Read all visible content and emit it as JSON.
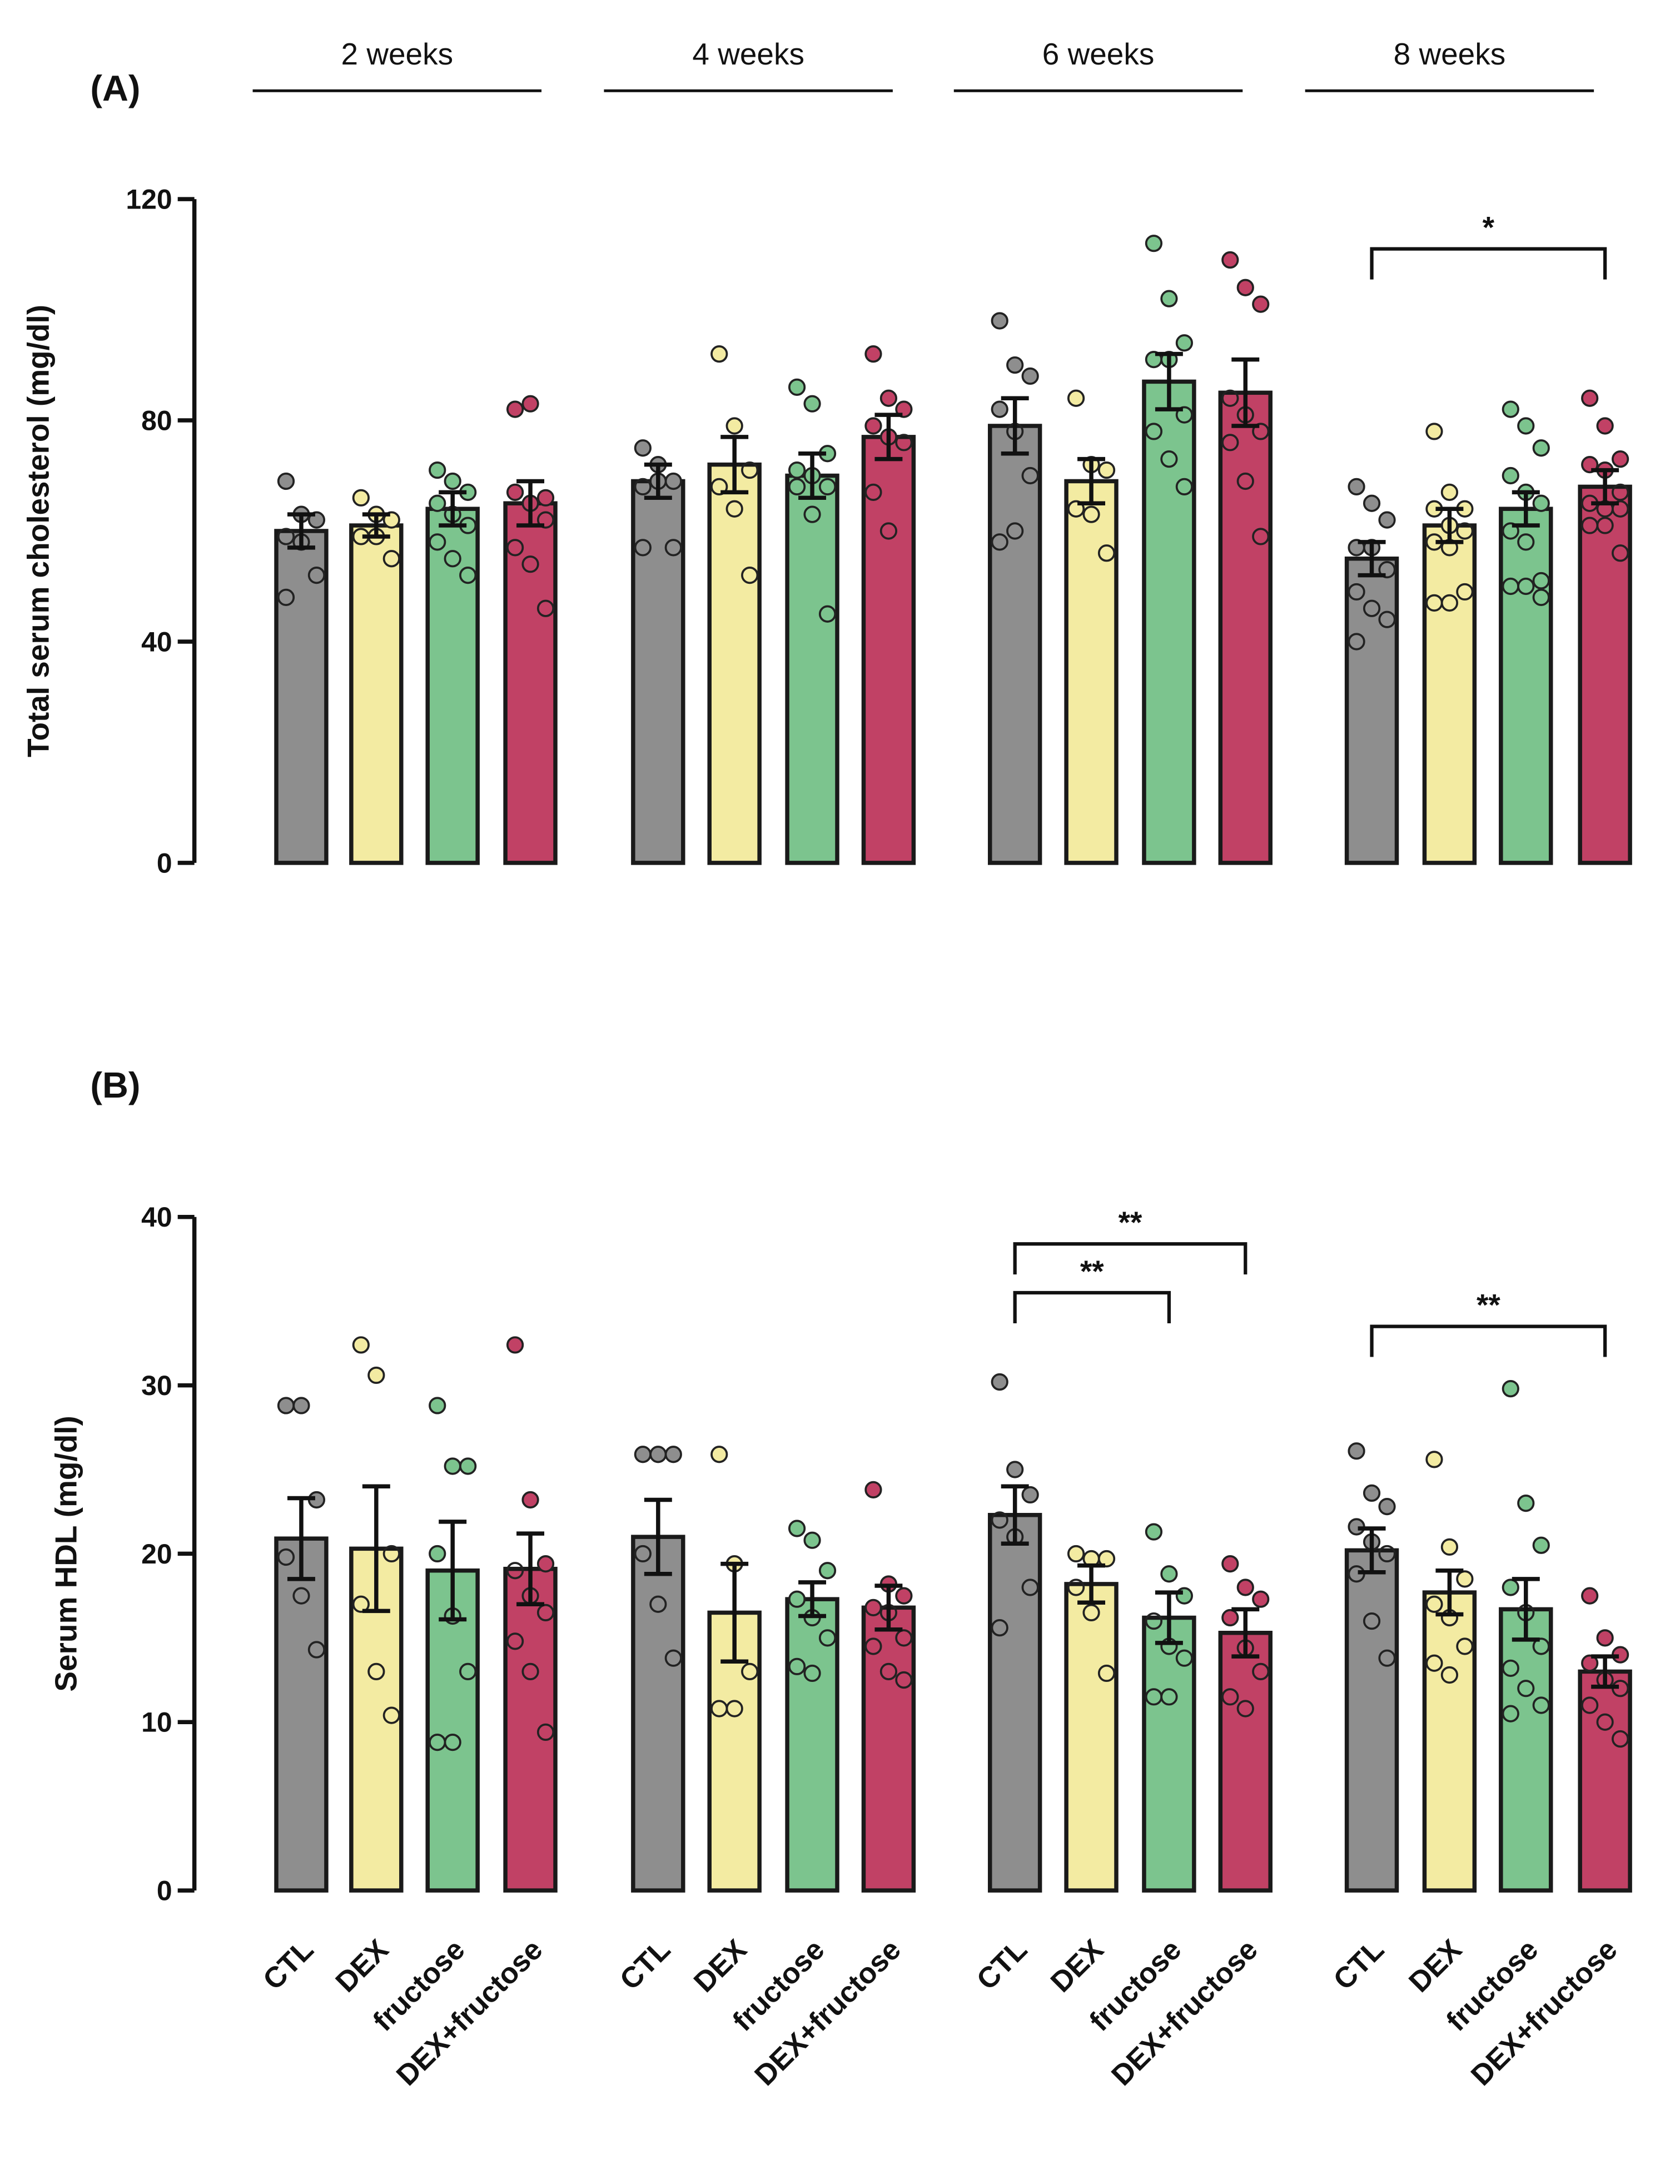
{
  "chart_data": {
    "type": "bar",
    "groups": [
      "2 weeks",
      "4 weeks",
      "6 weeks",
      "8 weeks"
    ],
    "categories": [
      "CTL",
      "DEX",
      "fructose",
      "DEX+fructose"
    ],
    "colors": {
      "CTL": "#8e8e8e",
      "DEX": "#f3eba2",
      "fructose": "#7cc48e",
      "DEX+fructose": "#c14165"
    },
    "panels": [
      {
        "label": "(A)",
        "ylabel": "Total serum cholesterol (mg/dl)",
        "ylim": [
          0,
          120
        ],
        "yticks": [
          "0",
          "40",
          "80",
          "120"
        ],
        "means": [
          [
            60,
            61,
            64,
            65
          ],
          [
            69,
            72,
            70,
            77
          ],
          [
            79,
            69,
            87,
            85
          ],
          [
            55,
            61,
            64,
            68
          ]
        ],
        "sem": [
          [
            3,
            2,
            3,
            4
          ],
          [
            3,
            5,
            4,
            4
          ],
          [
            5,
            4,
            5,
            6
          ],
          [
            3,
            3,
            3,
            3
          ]
        ],
        "points": [
          [
            [
              69,
              63,
              62,
              59,
              58,
              52,
              48
            ],
            [
              66,
              63,
              62,
              59,
              59,
              55
            ],
            [
              71,
              69,
              67,
              65,
              63,
              61,
              58,
              55,
              52
            ],
            [
              82,
              83,
              66,
              67,
              65,
              62,
              57,
              54,
              46
            ]
          ],
          [
            [
              75,
              72,
              69,
              68,
              69,
              57,
              57
            ],
            [
              92,
              79,
              71,
              68,
              64,
              52
            ],
            [
              86,
              83,
              74,
              71,
              70,
              68,
              68,
              63,
              45
            ],
            [
              92,
              84,
              82,
              79,
              77,
              76,
              67,
              60
            ]
          ],
          [
            [
              98,
              90,
              88,
              82,
              78,
              70,
              58,
              60
            ],
            [
              84,
              72,
              71,
              64,
              63,
              56
            ],
            [
              112,
              102,
              94,
              91,
              91,
              81,
              78,
              73,
              68
            ],
            [
              109,
              104,
              101,
              84,
              81,
              78,
              76,
              69,
              59
            ]
          ],
          [
            [
              68,
              65,
              62,
              57,
              57,
              53,
              49,
              46,
              44,
              40
            ],
            [
              78,
              67,
              64,
              64,
              61,
              60,
              58,
              57,
              49,
              47,
              47
            ],
            [
              82,
              79,
              75,
              70,
              67,
              65,
              60,
              58,
              51,
              50,
              50,
              48
            ],
            [
              84,
              79,
              73,
              72,
              71,
              67,
              65,
              64,
              64,
              61,
              61,
              56
            ]
          ]
        ],
        "significance": [
          {
            "group": 3,
            "from": 0,
            "to": 3,
            "label": "*",
            "y": 111
          }
        ]
      },
      {
        "label": "(B)",
        "ylabel": "Serum HDL (mg/dl)",
        "ylim": [
          0,
          40
        ],
        "yticks": [
          "0",
          "10",
          "20",
          "30",
          "40"
        ],
        "means": [
          [
            20.9,
            20.3,
            19.0,
            19.1
          ],
          [
            21.0,
            16.5,
            17.3,
            16.8
          ],
          [
            22.3,
            18.2,
            16.2,
            15.3
          ],
          [
            20.2,
            17.7,
            16.7,
            13.0
          ]
        ],
        "sem": [
          [
            2.4,
            3.7,
            2.9,
            2.1
          ],
          [
            2.2,
            2.9,
            1.0,
            1.3
          ],
          [
            1.7,
            1.1,
            1.5,
            1.4
          ],
          [
            1.3,
            1.3,
            1.8,
            0.9
          ]
        ],
        "points": [
          [
            [
              28.8,
              28.8,
              23.2,
              19.8,
              17.5,
              14.3
            ],
            [
              32.4,
              30.6,
              20.0,
              17.0,
              13.0,
              10.4
            ],
            [
              28.8,
              25.2,
              25.2,
              20.0,
              16.3,
              13.0,
              8.8,
              8.8
            ],
            [
              32.4,
              23.2,
              19.4,
              19.0,
              17.5,
              16.5,
              14.8,
              13.0,
              9.4
            ]
          ],
          [
            [
              25.9,
              25.9,
              25.9,
              20.0,
              17.0,
              13.8
            ],
            [
              25.9,
              19.4,
              13.0,
              10.8,
              10.8
            ],
            [
              21.5,
              20.8,
              19.0,
              17.3,
              16.2,
              15.0,
              13.3,
              12.9
            ],
            [
              23.8,
              18.2,
              17.5,
              16.8,
              16.5,
              15.0,
              14.5,
              13.0,
              12.5
            ]
          ],
          [
            [
              30.2,
              25.0,
              23.5,
              22.0,
              21.0,
              18.0,
              15.6
            ],
            [
              20.0,
              19.7,
              19.7,
              18.0,
              16.5,
              12.9
            ],
            [
              21.3,
              18.8,
              17.5,
              16.0,
              14.5,
              13.8,
              11.5,
              11.5
            ],
            [
              19.4,
              18.0,
              17.3,
              16.2,
              14.4,
              13.0,
              11.5,
              10.8
            ]
          ],
          [
            [
              26.1,
              23.6,
              22.8,
              21.6,
              20.7,
              20.0,
              18.8,
              16.0,
              13.8
            ],
            [
              25.6,
              20.4,
              18.5,
              17.0,
              16.2,
              14.5,
              13.5,
              12.8
            ],
            [
              29.8,
              23.0,
              20.5,
              18.0,
              16.5,
              14.5,
              13.2,
              12.0,
              11.0,
              10.5
            ],
            [
              17.5,
              15.0,
              14.0,
              13.5,
              12.5,
              12.0,
              11.0,
              10.0,
              9.0
            ]
          ]
        ],
        "significance": [
          {
            "group": 2,
            "from": 0,
            "to": 2,
            "label": "**",
            "y": 35.5
          },
          {
            "group": 2,
            "from": 0,
            "to": 3,
            "label": "**",
            "y": 38.4
          },
          {
            "group": 3,
            "from": 0,
            "to": 3,
            "label": "**",
            "y": 33.5
          }
        ]
      }
    ]
  }
}
